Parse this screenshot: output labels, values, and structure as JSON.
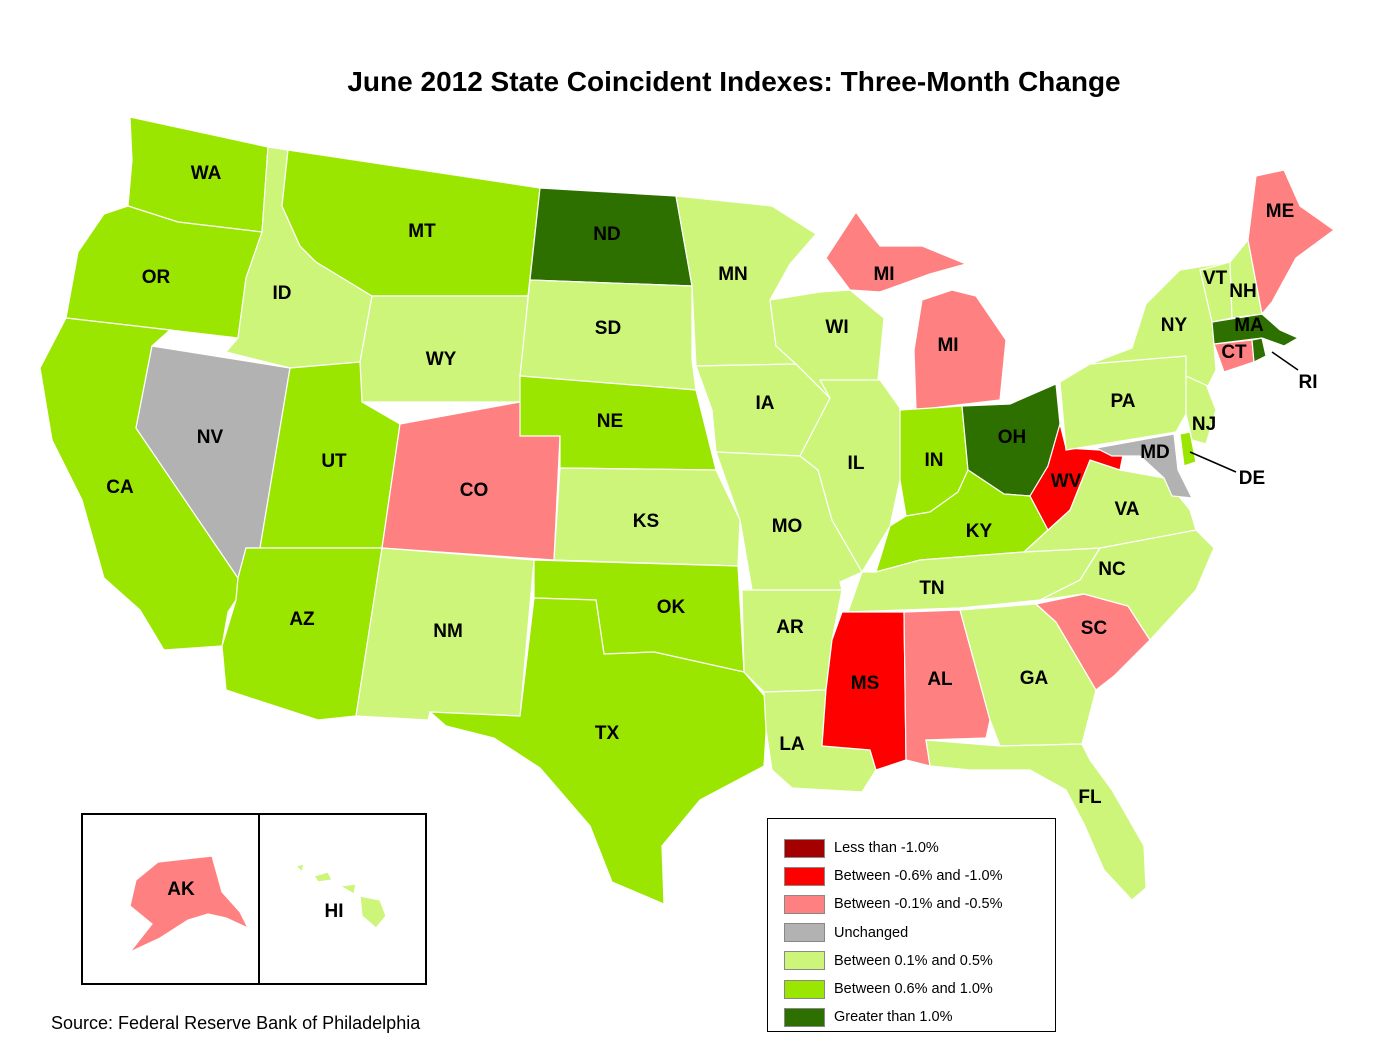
{
  "title": "June 2012 State Coincident Indexes: Three-Month Change",
  "source": "Source: Federal Reserve Bank of Philadelphia",
  "colors": {
    "less_than_neg1": "#a40000",
    "neg06_to_neg1": "#ff0000",
    "neg01_to_neg05": "#ff8080",
    "unchanged": "#b2b2b2",
    "pos01_to_pos05": "#ccf57a",
    "pos06_to_pos1": "#9ae600",
    "greater_than_1": "#2d7000"
  },
  "legend": [
    {
      "label": "Less than -1.0%",
      "color": "#a40000"
    },
    {
      "label": "Between -0.6% and -1.0%",
      "color": "#ff0000"
    },
    {
      "label": "Between -0.1% and -0.5%",
      "color": "#ff8080"
    },
    {
      "label": "Unchanged",
      "color": "#b2b2b2"
    },
    {
      "label": "Between 0.1% and 0.5%",
      "color": "#ccf57a"
    },
    {
      "label": "Between 0.6% and 1.0%",
      "color": "#9ae600"
    },
    {
      "label": "Greater than 1.0%",
      "color": "#2d7000"
    }
  ],
  "states": [
    {
      "abbr": "WA",
      "category": "Between 0.6% and 1.0%"
    },
    {
      "abbr": "OR",
      "category": "Between 0.6% and 1.0%"
    },
    {
      "abbr": "CA",
      "category": "Between 0.6% and 1.0%"
    },
    {
      "abbr": "NV",
      "category": "Unchanged"
    },
    {
      "abbr": "ID",
      "category": "Between 0.1% and 0.5%"
    },
    {
      "abbr": "MT",
      "category": "Between 0.6% and 1.0%"
    },
    {
      "abbr": "WY",
      "category": "Between 0.1% and 0.5%"
    },
    {
      "abbr": "UT",
      "category": "Between 0.6% and 1.0%"
    },
    {
      "abbr": "AZ",
      "category": "Between 0.6% and 1.0%"
    },
    {
      "abbr": "CO",
      "category": "Between -0.1% and -0.5%"
    },
    {
      "abbr": "NM",
      "category": "Between 0.1% and 0.5%"
    },
    {
      "abbr": "ND",
      "category": "Greater than 1.0%"
    },
    {
      "abbr": "SD",
      "category": "Between 0.1% and 0.5%"
    },
    {
      "abbr": "NE",
      "category": "Between 0.6% and 1.0%"
    },
    {
      "abbr": "KS",
      "category": "Between 0.1% and 0.5%"
    },
    {
      "abbr": "OK",
      "category": "Between 0.6% and 1.0%"
    },
    {
      "abbr": "TX",
      "category": "Between 0.6% and 1.0%"
    },
    {
      "abbr": "MN",
      "category": "Between 0.1% and 0.5%"
    },
    {
      "abbr": "IA",
      "category": "Between 0.1% and 0.5%"
    },
    {
      "abbr": "MO",
      "category": "Between 0.1% and 0.5%"
    },
    {
      "abbr": "AR",
      "category": "Between 0.1% and 0.5%"
    },
    {
      "abbr": "LA",
      "category": "Between 0.1% and 0.5%"
    },
    {
      "abbr": "WI",
      "category": "Between 0.1% and 0.5%"
    },
    {
      "abbr": "IL",
      "category": "Between 0.1% and 0.5%"
    },
    {
      "abbr": "MI",
      "category": "Between -0.1% and -0.5%"
    },
    {
      "abbr": "IN",
      "category": "Between 0.6% and 1.0%"
    },
    {
      "abbr": "OH",
      "category": "Greater than 1.0%"
    },
    {
      "abbr": "KY",
      "category": "Between 0.6% and 1.0%"
    },
    {
      "abbr": "TN",
      "category": "Between 0.1% and 0.5%"
    },
    {
      "abbr": "MS",
      "category": "Between -0.6% and -1.0%"
    },
    {
      "abbr": "AL",
      "category": "Between -0.1% and -0.5%"
    },
    {
      "abbr": "GA",
      "category": "Between 0.1% and 0.5%"
    },
    {
      "abbr": "FL",
      "category": "Between 0.1% and 0.5%"
    },
    {
      "abbr": "SC",
      "category": "Between -0.1% and -0.5%"
    },
    {
      "abbr": "NC",
      "category": "Between 0.1% and 0.5%"
    },
    {
      "abbr": "VA",
      "category": "Between 0.1% and 0.5%"
    },
    {
      "abbr": "WV",
      "category": "Between -0.6% and -1.0%"
    },
    {
      "abbr": "MD",
      "category": "Unchanged"
    },
    {
      "abbr": "DE",
      "category": "Between 0.6% and 1.0%"
    },
    {
      "abbr": "PA",
      "category": "Between 0.1% and 0.5%"
    },
    {
      "abbr": "NJ",
      "category": "Between 0.1% and 0.5%"
    },
    {
      "abbr": "NY",
      "category": "Between 0.1% and 0.5%"
    },
    {
      "abbr": "CT",
      "category": "Between -0.1% and -0.5%"
    },
    {
      "abbr": "RI",
      "category": "Greater than 1.0%"
    },
    {
      "abbr": "MA",
      "category": "Greater than 1.0%"
    },
    {
      "abbr": "VT",
      "category": "Between 0.1% and 0.5%"
    },
    {
      "abbr": "NH",
      "category": "Between 0.1% and 0.5%"
    },
    {
      "abbr": "ME",
      "category": "Between -0.1% and -0.5%"
    },
    {
      "abbr": "AK",
      "category": "Between -0.1% and -0.5%"
    },
    {
      "abbr": "HI",
      "category": "Between 0.1% and 0.5%"
    }
  ]
}
